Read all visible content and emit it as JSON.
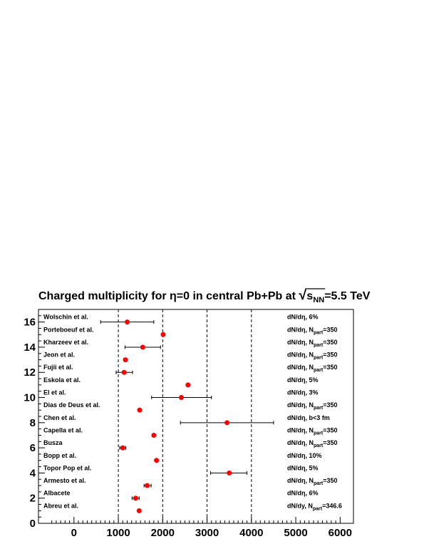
{
  "chart_data": {
    "type": "scatter",
    "title": {
      "pre": "Charged multiplicity for ",
      "eta": "η",
      "mid": "=0 in central Pb+Pb at ",
      "s": "s",
      "nn": "NN",
      "post": "=5.5 TeV"
    },
    "xlim": [
      -800,
      6300
    ],
    "ylim": [
      0,
      17
    ],
    "x_ticks": [
      0,
      1000,
      2000,
      3000,
      4000,
      5000,
      6000
    ],
    "y_ticks": [
      0,
      2,
      4,
      6,
      8,
      10,
      12,
      14,
      16
    ],
    "vlines": [
      1000,
      2000,
      3000,
      4000
    ],
    "marker_color": "#ff0000",
    "points": [
      {
        "label": "Abreu et al.",
        "y": 1,
        "x": 1470,
        "err": null,
        "note": "dN/dy, N",
        "sub": "part",
        "tail": "=346.6"
      },
      {
        "label": "Albacete",
        "y": 2,
        "x": 1390,
        "err": [
          1310,
          1470
        ],
        "note": "dN/dη, 6%",
        "sub": "",
        "tail": ""
      },
      {
        "label": "Armesto et al.",
        "y": 3,
        "x": 1650,
        "err": [
          1580,
          1740
        ],
        "note": "dN/dη, N",
        "sub": "part",
        "tail": "=350"
      },
      {
        "label": "Topor Pop et al.",
        "y": 4,
        "x": 3500,
        "err": [
          3080,
          3900
        ],
        "note": "dN/dη, 5%",
        "sub": "",
        "tail": ""
      },
      {
        "label": "Bopp et al.",
        "y": 5,
        "x": 1860,
        "err": null,
        "note": "dN/dη, 10%",
        "sub": "",
        "tail": ""
      },
      {
        "label": "Busza",
        "y": 6,
        "x": 1100,
        "err": [
          1030,
          1170
        ],
        "note": "dN/dη, N",
        "sub": "part",
        "tail": "=350"
      },
      {
        "label": "Capella et al.",
        "y": 7,
        "x": 1800,
        "err": null,
        "note": "dN/dη, N",
        "sub": "part",
        "tail": "=350"
      },
      {
        "label": "Chen et al.",
        "y": 8,
        "x": 3450,
        "err": [
          2400,
          4500
        ],
        "note": "dN/dη, b<3 fm",
        "sub": "",
        "tail": ""
      },
      {
        "label": "Dias de Deus et al.",
        "y": 9,
        "x": 1480,
        "err": null,
        "note": "dN/dη, N",
        "sub": "part",
        "tail": "=350"
      },
      {
        "label": "El et al.",
        "y": 10,
        "x": 2420,
        "err": [
          1750,
          3100
        ],
        "note": "dN/dη, 3%",
        "sub": "",
        "tail": ""
      },
      {
        "label": "Eskola et al.",
        "y": 11,
        "x": 2570,
        "err": null,
        "note": "dN/dη, 5%",
        "sub": "",
        "tail": ""
      },
      {
        "label": "Fujii et al.",
        "y": 12,
        "x": 1130,
        "err": [
          950,
          1320
        ],
        "note": "dN/dη, N",
        "sub": "part",
        "tail": "=350"
      },
      {
        "label": "Jeon et al.",
        "y": 13,
        "x": 1160,
        "err": null,
        "note": "dN/dη, N",
        "sub": "part",
        "tail": "=350"
      },
      {
        "label": "Kharzeev et al.",
        "y": 14,
        "x": 1550,
        "err": [
          1150,
          1950
        ],
        "note": "dN/dη, N",
        "sub": "part",
        "tail": "=350"
      },
      {
        "label": "Porteboeuf et al.",
        "y": 15,
        "x": 2010,
        "err": null,
        "note": "dN/dη, N",
        "sub": "part",
        "tail": "=350"
      },
      {
        "label": "Wolschin et al.",
        "y": 16,
        "x": 1200,
        "err": [
          600,
          1800
        ],
        "note": "dN/dη, 6%",
        "sub": "",
        "tail": ""
      }
    ]
  }
}
